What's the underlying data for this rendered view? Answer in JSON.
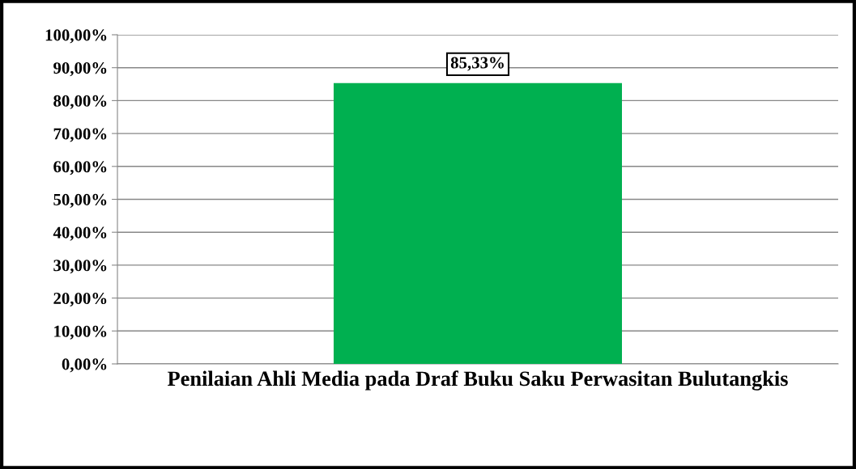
{
  "chart_data": {
    "type": "bar",
    "categories": [
      "Penilaian Ahli Media pada Draf Buku Saku Perwasitan Bulutangkis"
    ],
    "values": [
      85.33
    ],
    "color": "#00b050",
    "value_labels": [
      "85,33%"
    ],
    "ylim": [
      0,
      100
    ],
    "yticks": [
      {
        "value": 0,
        "label": "0,00%"
      },
      {
        "value": 10,
        "label": "10,00%"
      },
      {
        "value": 20,
        "label": "20,00%"
      },
      {
        "value": 30,
        "label": "30,00%"
      },
      {
        "value": 40,
        "label": "40,00%"
      },
      {
        "value": 50,
        "label": "50,00%"
      },
      {
        "value": 60,
        "label": "60,00%"
      },
      {
        "value": 70,
        "label": "70,00%"
      },
      {
        "value": 80,
        "label": "80,00%"
      },
      {
        "value": 90,
        "label": "90,00%"
      },
      {
        "value": 100,
        "label": "100,00%"
      }
    ],
    "grid": "y",
    "legend": false
  }
}
